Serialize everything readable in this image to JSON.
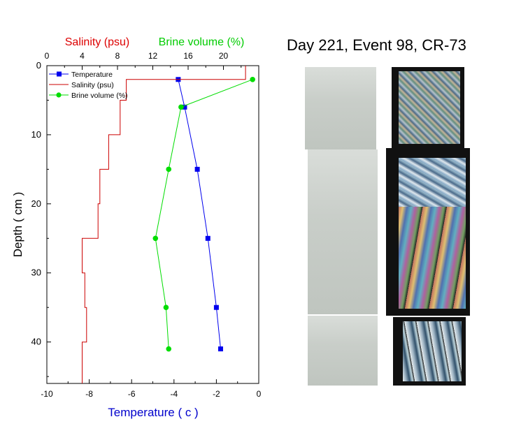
{
  "page_title": "Day 221, Event 98, CR-73",
  "colors": {
    "temperature": "#0000ee",
    "salinity": "#cc0000",
    "brine": "#00dd00",
    "axis": "#000000",
    "temp_axis_label": "#0000cc",
    "salinity_axis_label": "#dd0000",
    "brine_axis_label": "#00cc00"
  },
  "chart_data": {
    "type": "line",
    "orientation": "depth-profile",
    "ylabel": "Depth ( cm )",
    "xlabel_bottom": "Temperature ( c )",
    "xlabel_top_salinity": "Salinity (psu)",
    "xlabel_top_brine": "Brine volume (%)",
    "ylim": [
      0,
      46
    ],
    "yinverted": true,
    "yticks": [
      0,
      10,
      20,
      30,
      40
    ],
    "xlim_bottom": [
      -10,
      0
    ],
    "xticks_bottom": [
      -10,
      -8,
      -6,
      -4,
      -2,
      0
    ],
    "xlim_top": [
      0,
      24
    ],
    "xticks_top": [
      0,
      4,
      8,
      12,
      16,
      20
    ],
    "legend_position": "top-left",
    "grid": false,
    "series": [
      {
        "name": "Temperature",
        "axis": "bottom",
        "marker": "square",
        "depth": [
          2,
          6,
          15,
          25,
          35,
          41
        ],
        "value": [
          -3.8,
          -3.5,
          -2.9,
          -2.4,
          -2.0,
          -1.8
        ]
      },
      {
        "name": "Salinity (psu)",
        "axis": "top",
        "marker": "none",
        "step": true,
        "depth": [
          0,
          2,
          2,
          5,
          5,
          10,
          10,
          15,
          15,
          20,
          20,
          25,
          25,
          30,
          30,
          35,
          35,
          40,
          40,
          46
        ],
        "value": [
          22.5,
          22.5,
          9.0,
          9.0,
          8.3,
          8.3,
          7.0,
          7.0,
          6.0,
          6.0,
          5.8,
          5.8,
          4.0,
          4.0,
          4.3,
          4.3,
          4.5,
          4.5,
          4.0,
          4.0
        ]
      },
      {
        "name": "Brine volume (%)",
        "axis": "top",
        "marker": "circle",
        "depth": [
          2,
          6,
          15,
          25,
          35,
          41
        ],
        "value": [
          23.3,
          15.2,
          13.8,
          12.3,
          13.5,
          13.8
        ]
      }
    ]
  }
}
